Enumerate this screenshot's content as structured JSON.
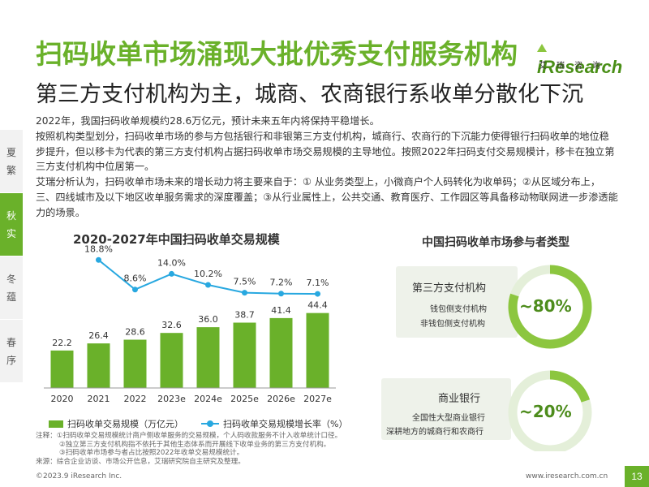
{
  "header": {
    "title": "扫码收单市场涌现大批优秀支付服务机构",
    "subtitle": "第三方支付机构为主，城商、农商银行系收单分散化下沉"
  },
  "logo": {
    "brand": "Research",
    "prefix": "i",
    "tagline": "艾瑞咨询"
  },
  "body": {
    "paragraphs": [
      "2022年，我国扫码收单规模约28.6万亿元，预计未来五年内将保持平稳增长。",
      "按照机构类型划分，扫码收单市场的参与方包括银行和非银第三方支付机构，城商行、农商行的下沉能力使得银行扫码收单的地位稳步提升，但以移卡为代表的第三方支付机构占据扫码收单市场交易规模的主导地位。按照2022年扫码支付交易规模计，移卡在独立第三方支付机构中位居第一。",
      "艾瑞分析认为，扫码收单市场未来的增长动力将主要来自于：① 从业务类型上，小微商户个人码转化为收单码；②从区域分布上，三、四线城市及以下地区收单服务需求的深度覆盖；③从行业属性上，公共交通、教育医疗、工作园区等具备移动物联网进一步渗透能力的场景。"
    ]
  },
  "side_tabs": [
    {
      "line1": "夏",
      "line2": "繁",
      "active": false
    },
    {
      "line1": "秋",
      "line2": "实",
      "active": true
    },
    {
      "line1": "冬",
      "line2": "蕴",
      "active": false
    },
    {
      "line1": "春",
      "line2": "序",
      "active": false
    }
  ],
  "chart_data": {
    "type": "bar+line",
    "title": "2020-2027年中国扫码收单交易规模",
    "categories": [
      "2020",
      "2021",
      "2022",
      "2023e",
      "2024e",
      "2025e",
      "2026e",
      "2027e"
    ],
    "series": [
      {
        "name": "扫码收单交易规模（万亿元）",
        "type": "bar",
        "color": "#6ab12a",
        "values": [
          22.2,
          26.4,
          28.6,
          32.6,
          36.0,
          38.7,
          41.4,
          44.4
        ]
      },
      {
        "name": "扫码收单交易规模增长率（%）",
        "type": "line",
        "color": "#28a8e0",
        "values": [
          null,
          18.8,
          8.6,
          14.0,
          10.2,
          7.5,
          7.2,
          7.1
        ],
        "labels": [
          "",
          "18.8%",
          "8.6%",
          "14.0%",
          "10.2%",
          "7.5%",
          "7.2%",
          "7.1%"
        ]
      }
    ],
    "bar_labels": [
      "22.2",
      "26.4",
      "28.6",
      "32.6",
      "36.0",
      "38.7",
      "41.4",
      "44.4"
    ],
    "ylim_bar": [
      0,
      60
    ],
    "ylim_line": [
      0,
      20
    ],
    "grid": false,
    "legend_position": "bottom"
  },
  "notes": {
    "line1": "注释：①扫码收单交易规模统计商户侧收单服务的交易规模，个人码收款服务不计入收单统计口径。",
    "line2": "②独立第三方支付机构指不依托于其他生态体系而开展线下收单业务的第三方支付机构。",
    "line3": "③扫码收单市场参与者占比按照2022年收单交易规模统计。",
    "source": "来源：综合企业访谈、市场公开信息，艾瑞研究院自主研究及整理。"
  },
  "participants": {
    "title": "中国扫码收单市场参与者类型",
    "groups": [
      {
        "head": "第三方支付机构",
        "items": [
          "钱包侧支付机构",
          "非钱包侧支付机构"
        ],
        "share_label": "~80%",
        "share": 0.8
      },
      {
        "head": "商业银行",
        "items": [
          "全国性大型商业银行",
          "深耕地方的城商行和农商行"
        ],
        "share_label": "~20%",
        "share": 0.2
      }
    ],
    "ring_color": "#8cc63f",
    "ring_bg": "#e4efd9"
  },
  "footer": {
    "copyright": "©2023.9 iResearch Inc.",
    "url": "www.iresearch.com.cn",
    "page": "13"
  }
}
